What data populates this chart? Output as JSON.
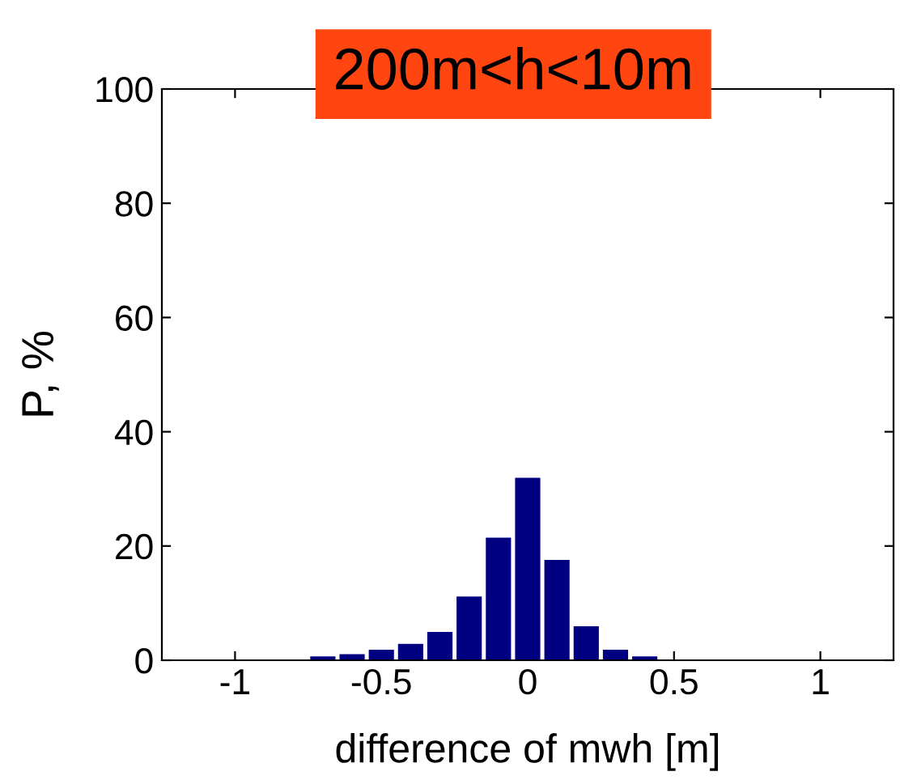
{
  "chart_data": {
    "type": "histogram",
    "title": "200m<h<10m",
    "xlabel": "difference of mwh [m]",
    "ylabel": "P, %",
    "bins": [
      -1.25,
      -1.15,
      -1.05,
      -0.95,
      -0.85,
      -0.75,
      -0.65,
      -0.55,
      -0.45,
      -0.35,
      -0.25,
      -0.15,
      -0.05,
      0.05,
      0.15,
      0.25,
      0.35,
      0.45,
      0.55,
      0.65,
      0.75,
      0.85,
      0.95,
      1.05,
      1.15,
      1.25
    ],
    "values": [
      0,
      0,
      0,
      0,
      0,
      0.5,
      0.9,
      1.7,
      2.7,
      4.8,
      11.0,
      21.3,
      31.8,
      17.4,
      5.8,
      1.7,
      0.5,
      0,
      0,
      0,
      0,
      0,
      0,
      0,
      0
    ],
    "color": "#000080",
    "xlim": [
      -1.25,
      1.25
    ],
    "xticks": [
      -1,
      -0.5,
      0,
      0.5,
      1
    ],
    "ylim": [
      0,
      100
    ],
    "yticks": [
      0,
      20,
      40,
      60,
      80,
      100
    ],
    "grid": false
  }
}
